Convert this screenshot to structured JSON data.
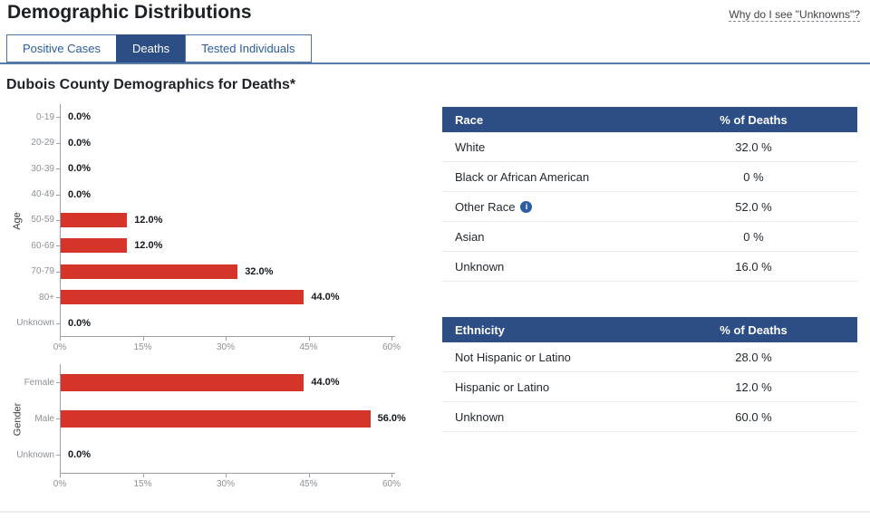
{
  "page": {
    "title": "Demographic Distributions",
    "help_link": "Why do I see \"Unknowns\"?",
    "section_title": "Dubois County Demographics for Deaths*"
  },
  "tabs": [
    {
      "label": "Positive Cases",
      "active": false
    },
    {
      "label": "Deaths",
      "active": true
    },
    {
      "label": "Tested Individuals",
      "active": false
    }
  ],
  "chart_data": [
    {
      "type": "bar",
      "orientation": "horizontal",
      "ylabel": "Age",
      "categories": [
        "0-19",
        "20-29",
        "30-39",
        "40-49",
        "50-59",
        "60-69",
        "70-79",
        "80+",
        "Unknown"
      ],
      "values": [
        0.0,
        0.0,
        0.0,
        0.0,
        12.0,
        12.0,
        32.0,
        44.0,
        0.0
      ],
      "labels": [
        "0.0%",
        "0.0%",
        "0.0%",
        "0.0%",
        "12.0%",
        "12.0%",
        "32.0%",
        "44.0%",
        "0.0%"
      ],
      "xlim": [
        0,
        60
      ],
      "xticks": [
        "0%",
        "15%",
        "30%",
        "45%",
        "60%"
      ],
      "bar_color": "#d53428",
      "grid": false,
      "legend": "none"
    },
    {
      "type": "bar",
      "orientation": "horizontal",
      "ylabel": "Gender",
      "categories": [
        "Female",
        "Male",
        "Unknown"
      ],
      "values": [
        44.0,
        56.0,
        0.0
      ],
      "labels": [
        "44.0%",
        "56.0%",
        "0.0%"
      ],
      "xlim": [
        0,
        60
      ],
      "xticks": [
        "0%",
        "15%",
        "30%",
        "45%",
        "60%"
      ],
      "bar_color": "#d53428",
      "grid": false,
      "legend": "none"
    }
  ],
  "race_table": {
    "headers": [
      "Race",
      "% of Deaths"
    ],
    "rows": [
      {
        "label": "White",
        "value": "32.0 %",
        "info": false
      },
      {
        "label": "Black or African American",
        "value": "0 %",
        "info": false
      },
      {
        "label": "Other Race",
        "value": "52.0 %",
        "info": true
      },
      {
        "label": "Asian",
        "value": "0 %",
        "info": false
      },
      {
        "label": "Unknown",
        "value": "16.0 %",
        "info": false
      }
    ]
  },
  "ethnicity_table": {
    "headers": [
      "Ethnicity",
      "% of Deaths"
    ],
    "rows": [
      {
        "label": "Not Hispanic or Latino",
        "value": "28.0 %",
        "info": false
      },
      {
        "label": "Hispanic or Latino",
        "value": "12.0 %",
        "info": false
      },
      {
        "label": "Unknown",
        "value": "60.0 %",
        "info": false
      }
    ]
  },
  "colors": {
    "accent_blue": "#2d4d85",
    "tab_border_blue": "#4d74a8",
    "bar_red": "#d53428",
    "info_icon_blue": "#2e5d9e"
  }
}
